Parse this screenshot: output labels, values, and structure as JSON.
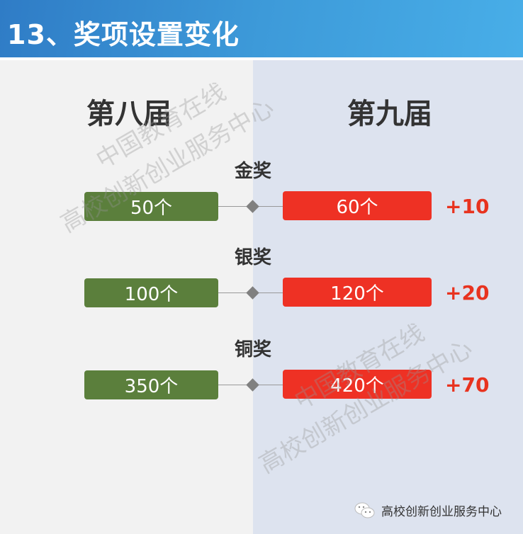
{
  "header": {
    "title": "13、奖项设置变化"
  },
  "columns": {
    "left": "第八届",
    "right": "第九届"
  },
  "awards": [
    {
      "label": "金奖",
      "left": "50个",
      "right": "60个",
      "delta": "+10"
    },
    {
      "label": "银奖",
      "left": "100个",
      "right": "120个",
      "delta": "+20"
    },
    {
      "label": "铜奖",
      "left": "350个",
      "right": "420个",
      "delta": "+70"
    }
  ],
  "watermarks": {
    "line1": "中国教育在线",
    "line2": "高校创新创业服务中心"
  },
  "footer": {
    "icon": "wechat-icon",
    "text": "高校创新创业服务中心"
  },
  "colors": {
    "header": "#3d9ad9",
    "old": "#5b7f3c",
    "new": "#ee3124",
    "delta": "#e8331f"
  }
}
